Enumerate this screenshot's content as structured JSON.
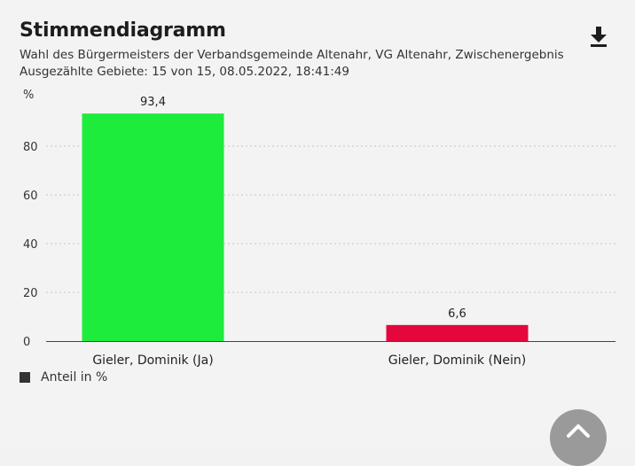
{
  "header": {
    "title": "Stimmendiagramm",
    "subtitle_line1": "Wahl des Bürgermeisters der Verbandsgemeinde Altenahr, VG Altenahr, Zwischenergebnis",
    "subtitle_line2": "Ausgezählte Gebiete: 15 von 15, 08.05.2022, 18:41:49"
  },
  "icons": {
    "download": "download-icon",
    "scroll_top": "chevron-up-icon"
  },
  "chart_data": {
    "type": "bar",
    "categories": [
      "Gieler, Dominik (Ja)",
      "Gieler, Dominik (Nein)"
    ],
    "values": [
      93.4,
      6.6
    ],
    "value_labels": [
      "93,4",
      "6,6"
    ],
    "colors": [
      "#1eec3c",
      "#e4073c"
    ],
    "ylabel": "%",
    "ylim": [
      0,
      100
    ],
    "yticks": [
      0,
      20,
      40,
      60,
      80
    ],
    "grid": true,
    "legend": {
      "label": "Anteil in %",
      "placement": "bottom-left",
      "color": "#333333"
    }
  }
}
